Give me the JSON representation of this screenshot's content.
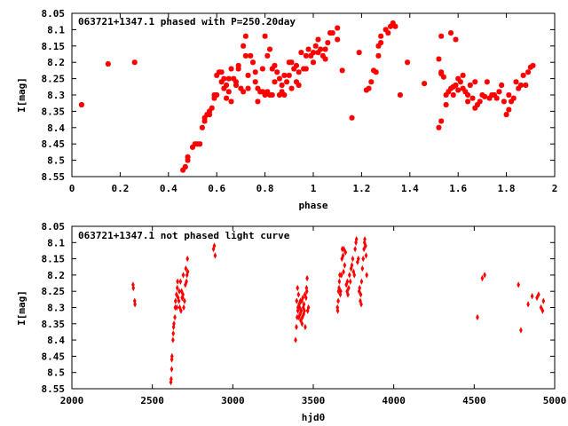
{
  "chart_data": [
    {
      "type": "scatter",
      "title": "063721+1347.1 phased with P=250.20day",
      "xlabel": "phase",
      "ylabel": "I[mag]",
      "xlim": [
        0,
        2
      ],
      "ylim": [
        8.55,
        8.05
      ],
      "y_inverted": true,
      "grid": false,
      "marker_color": "#ff0000",
      "x_ticks": [
        {
          "v": 0,
          "label": "0"
        },
        {
          "v": 0.2,
          "label": "0.2"
        },
        {
          "v": 0.4,
          "label": "0.4"
        },
        {
          "v": 0.6,
          "label": "0.6"
        },
        {
          "v": 0.8,
          "label": "0.8"
        },
        {
          "v": 1,
          "label": "1"
        },
        {
          "v": 1.2,
          "label": "1.2"
        },
        {
          "v": 1.4,
          "label": "1.4"
        },
        {
          "v": 1.6,
          "label": "1.6"
        },
        {
          "v": 1.8,
          "label": "1.8"
        },
        {
          "v": 2,
          "label": "2"
        }
      ],
      "y_ticks": [
        {
          "v": 8.05,
          "label": "8.05"
        },
        {
          "v": 8.1,
          "label": "8.1"
        },
        {
          "v": 8.15,
          "label": "8.15"
        },
        {
          "v": 8.2,
          "label": "8.2"
        },
        {
          "v": 8.25,
          "label": "8.25"
        },
        {
          "v": 8.3,
          "label": "8.3"
        },
        {
          "v": 8.35,
          "label": "8.35"
        },
        {
          "v": 8.4,
          "label": "8.4"
        },
        {
          "v": 8.45,
          "label": "8.45"
        },
        {
          "v": 8.5,
          "label": "8.5"
        },
        {
          "v": 8.55,
          "label": "8.55"
        }
      ],
      "points": [
        [
          0.04,
          8.33
        ],
        [
          0.15,
          8.205
        ],
        [
          0.26,
          8.2
        ],
        [
          0.46,
          8.53
        ],
        [
          0.47,
          8.52
        ],
        [
          0.48,
          8.5
        ],
        [
          0.48,
          8.49
        ],
        [
          0.5,
          8.46
        ],
        [
          0.51,
          8.45
        ],
        [
          0.52,
          8.45
        ],
        [
          0.53,
          8.45
        ],
        [
          0.54,
          8.4
        ],
        [
          0.55,
          8.38
        ],
        [
          0.55,
          8.37
        ],
        [
          0.56,
          8.36
        ],
        [
          0.57,
          8.35
        ],
        [
          0.57,
          8.36
        ],
        [
          0.58,
          8.34
        ],
        [
          0.59,
          8.31
        ],
        [
          0.59,
          8.3
        ],
        [
          0.6,
          8.3
        ],
        [
          0.6,
          8.24
        ],
        [
          0.61,
          8.23
        ],
        [
          0.62,
          8.23
        ],
        [
          0.62,
          8.26
        ],
        [
          0.63,
          8.28
        ],
        [
          0.63,
          8.25
        ],
        [
          0.64,
          8.27
        ],
        [
          0.64,
          8.31
        ],
        [
          0.65,
          8.25
        ],
        [
          0.65,
          8.29
        ],
        [
          0.66,
          8.22
        ],
        [
          0.66,
          8.32
        ],
        [
          0.67,
          8.25
        ],
        [
          0.68,
          8.27
        ],
        [
          0.68,
          8.26
        ],
        [
          0.69,
          8.22
        ],
        [
          0.69,
          8.21
        ],
        [
          0.7,
          8.28
        ],
        [
          0.71,
          8.29
        ],
        [
          0.71,
          8.15
        ],
        [
          0.72,
          8.18
        ],
        [
          0.72,
          8.12
        ],
        [
          0.73,
          8.24
        ],
        [
          0.73,
          8.28
        ],
        [
          0.74,
          8.18
        ],
        [
          0.75,
          8.2
        ],
        [
          0.76,
          8.23
        ],
        [
          0.76,
          8.26
        ],
        [
          0.77,
          8.28
        ],
        [
          0.77,
          8.32
        ],
        [
          0.78,
          8.29
        ],
        [
          0.79,
          8.29
        ],
        [
          0.79,
          8.22
        ],
        [
          0.8,
          8.12
        ],
        [
          0.8,
          8.3
        ],
        [
          0.81,
          8.18
        ],
        [
          0.81,
          8.29
        ],
        [
          0.82,
          8.16
        ],
        [
          0.82,
          8.3
        ],
        [
          0.83,
          8.22
        ],
        [
          0.83,
          8.3
        ],
        [
          0.84,
          8.21
        ],
        [
          0.84,
          8.26
        ],
        [
          0.85,
          8.23
        ],
        [
          0.86,
          8.25
        ],
        [
          0.86,
          8.3
        ],
        [
          0.87,
          8.27
        ],
        [
          0.87,
          8.29
        ],
        [
          0.88,
          8.24
        ],
        [
          0.88,
          8.3
        ],
        [
          0.89,
          8.26
        ],
        [
          0.9,
          8.24
        ],
        [
          0.9,
          8.2
        ],
        [
          0.91,
          8.2
        ],
        [
          0.91,
          8.28
        ],
        [
          0.92,
          8.22
        ],
        [
          0.93,
          8.26
        ],
        [
          0.93,
          8.21
        ],
        [
          0.94,
          8.27
        ],
        [
          0.94,
          8.23
        ],
        [
          0.95,
          8.17
        ],
        [
          0.96,
          8.22
        ],
        [
          0.97,
          8.18
        ],
        [
          0.97,
          8.22
        ],
        [
          0.98,
          8.16
        ],
        [
          0.99,
          8.18
        ],
        [
          1.0,
          8.17
        ],
        [
          1.0,
          8.2
        ],
        [
          1.01,
          8.15
        ],
        [
          1.02,
          8.17
        ],
        [
          1.02,
          8.13
        ],
        [
          1.03,
          8.16
        ],
        [
          1.04,
          8.18
        ],
        [
          1.05,
          8.19
        ],
        [
          1.05,
          8.16
        ],
        [
          1.06,
          8.14
        ],
        [
          1.07,
          8.11
        ],
        [
          1.08,
          8.11
        ],
        [
          1.1,
          8.095
        ],
        [
          1.1,
          8.13
        ],
        [
          1.12,
          8.225
        ],
        [
          1.16,
          8.37
        ],
        [
          1.19,
          8.17
        ],
        [
          1.22,
          8.285
        ],
        [
          1.23,
          8.28
        ],
        [
          1.24,
          8.26
        ],
        [
          1.25,
          8.225
        ],
        [
          1.26,
          8.23
        ],
        [
          1.27,
          8.18
        ],
        [
          1.27,
          8.15
        ],
        [
          1.28,
          8.14
        ],
        [
          1.28,
          8.12
        ],
        [
          1.3,
          8.1
        ],
        [
          1.31,
          8.11
        ],
        [
          1.32,
          8.09
        ],
        [
          1.33,
          8.08
        ],
        [
          1.34,
          8.09
        ],
        [
          1.36,
          8.3
        ],
        [
          1.39,
          8.2
        ],
        [
          1.46,
          8.265
        ],
        [
          1.52,
          8.19
        ],
        [
          1.52,
          8.4
        ],
        [
          1.53,
          8.23
        ],
        [
          1.53,
          8.235
        ],
        [
          1.53,
          8.38
        ],
        [
          1.53,
          8.12
        ],
        [
          1.54,
          8.245
        ],
        [
          1.55,
          8.3
        ],
        [
          1.55,
          8.33
        ],
        [
          1.56,
          8.29
        ],
        [
          1.57,
          8.11
        ],
        [
          1.57,
          8.28
        ],
        [
          1.58,
          8.275
        ],
        [
          1.58,
          8.3
        ],
        [
          1.59,
          8.13
        ],
        [
          1.59,
          8.27
        ],
        [
          1.6,
          8.285
        ],
        [
          1.6,
          8.25
        ],
        [
          1.61,
          8.26
        ],
        [
          1.62,
          8.24
        ],
        [
          1.62,
          8.28
        ],
        [
          1.63,
          8.29
        ],
        [
          1.64,
          8.3
        ],
        [
          1.64,
          8.32
        ],
        [
          1.65,
          8.27
        ],
        [
          1.66,
          8.31
        ],
        [
          1.67,
          8.34
        ],
        [
          1.67,
          8.26
        ],
        [
          1.68,
          8.33
        ],
        [
          1.69,
          8.32
        ],
        [
          1.7,
          8.3
        ],
        [
          1.71,
          8.305
        ],
        [
          1.72,
          8.26
        ],
        [
          1.73,
          8.31
        ],
        [
          1.74,
          8.3
        ],
        [
          1.75,
          8.3
        ],
        [
          1.76,
          8.31
        ],
        [
          1.77,
          8.29
        ],
        [
          1.78,
          8.27
        ],
        [
          1.79,
          8.32
        ],
        [
          1.8,
          8.36
        ],
        [
          1.81,
          8.3
        ],
        [
          1.81,
          8.345
        ],
        [
          1.82,
          8.32
        ],
        [
          1.83,
          8.31
        ],
        [
          1.84,
          8.26
        ],
        [
          1.85,
          8.28
        ],
        [
          1.86,
          8.27
        ],
        [
          1.87,
          8.24
        ],
        [
          1.88,
          8.27
        ],
        [
          1.89,
          8.23
        ],
        [
          1.9,
          8.215
        ],
        [
          1.91,
          8.21
        ]
      ]
    },
    {
      "type": "scatter",
      "title": "063721+1347.1 not phased light curve",
      "xlabel": "hjd0",
      "ylabel": "I[mag]",
      "xlim": [
        2000,
        5000
      ],
      "ylim": [
        8.55,
        8.05
      ],
      "y_inverted": true,
      "grid": false,
      "marker_color": "#ff0000",
      "x_ticks": [
        {
          "v": 2000,
          "label": "2000"
        },
        {
          "v": 2500,
          "label": "2500"
        },
        {
          "v": 3000,
          "label": "3000"
        },
        {
          "v": 3500,
          "label": "3500"
        },
        {
          "v": 4000,
          "label": "4000"
        },
        {
          "v": 4500,
          "label": "4500"
        },
        {
          "v": 5000,
          "label": "5000"
        }
      ],
      "y_ticks": [
        {
          "v": 8.05,
          "label": "8.05"
        },
        {
          "v": 8.1,
          "label": "8.1"
        },
        {
          "v": 8.15,
          "label": "8.15"
        },
        {
          "v": 8.2,
          "label": "8.2"
        },
        {
          "v": 8.25,
          "label": "8.25"
        },
        {
          "v": 8.3,
          "label": "8.3"
        },
        {
          "v": 8.35,
          "label": "8.35"
        },
        {
          "v": 8.4,
          "label": "8.4"
        },
        {
          "v": 8.45,
          "label": "8.45"
        },
        {
          "v": 8.5,
          "label": "8.5"
        },
        {
          "v": 8.55,
          "label": "8.55"
        }
      ],
      "points": [
        [
          2380,
          8.23
        ],
        [
          2382,
          8.24
        ],
        [
          2390,
          8.28
        ],
        [
          2392,
          8.29
        ],
        [
          2615,
          8.53
        ],
        [
          2617,
          8.52
        ],
        [
          2620,
          8.49
        ],
        [
          2621,
          8.46
        ],
        [
          2622,
          8.45
        ],
        [
          2628,
          8.4
        ],
        [
          2630,
          8.38
        ],
        [
          2632,
          8.36
        ],
        [
          2634,
          8.35
        ],
        [
          2640,
          8.33
        ],
        [
          2642,
          8.3
        ],
        [
          2644,
          8.28
        ],
        [
          2650,
          8.26
        ],
        [
          2652,
          8.3
        ],
        [
          2655,
          8.24
        ],
        [
          2657,
          8.22
        ],
        [
          2660,
          8.27
        ],
        [
          2665,
          8.28
        ],
        [
          2668,
          8.25
        ],
        [
          2670,
          8.3
        ],
        [
          2675,
          8.22
        ],
        [
          2678,
          8.31
        ],
        [
          2682,
          8.25
        ],
        [
          2685,
          8.27
        ],
        [
          2688,
          8.27
        ],
        [
          2690,
          8.26
        ],
        [
          2692,
          8.2
        ],
        [
          2695,
          8.3
        ],
        [
          2700,
          8.28
        ],
        [
          2705,
          8.23
        ],
        [
          2708,
          8.18
        ],
        [
          2712,
          8.22
        ],
        [
          2715,
          8.2
        ],
        [
          2718,
          8.15
        ],
        [
          2720,
          8.19
        ],
        [
          2880,
          8.12
        ],
        [
          2885,
          8.11
        ],
        [
          2890,
          8.14
        ],
        [
          3390,
          8.4
        ],
        [
          3395,
          8.36
        ],
        [
          3397,
          8.28
        ],
        [
          3400,
          8.33
        ],
        [
          3402,
          8.24
        ],
        [
          3404,
          8.31
        ],
        [
          3405,
          8.3
        ],
        [
          3408,
          8.26
        ],
        [
          3410,
          8.33
        ],
        [
          3412,
          8.29
        ],
        [
          3415,
          8.3
        ],
        [
          3418,
          8.32
        ],
        [
          3420,
          8.28
        ],
        [
          3422,
          8.34
        ],
        [
          3425,
          8.31
        ],
        [
          3428,
          8.28
        ],
        [
          3430,
          8.35
        ],
        [
          3432,
          8.33
        ],
        [
          3435,
          8.27
        ],
        [
          3438,
          8.3
        ],
        [
          3440,
          8.32
        ],
        [
          3442,
          8.29
        ],
        [
          3445,
          8.31
        ],
        [
          3448,
          8.26
        ],
        [
          3450,
          8.36
        ],
        [
          3455,
          8.27
        ],
        [
          3458,
          8.24
        ],
        [
          3460,
          8.25
        ],
        [
          3462,
          8.21
        ],
        [
          3465,
          8.31
        ],
        [
          3470,
          8.3
        ],
        [
          3650,
          8.3
        ],
        [
          3652,
          8.31
        ],
        [
          3655,
          8.28
        ],
        [
          3657,
          8.25
        ],
        [
          3660,
          8.24
        ],
        [
          3662,
          8.22
        ],
        [
          3665,
          8.2
        ],
        [
          3668,
          8.26
        ],
        [
          3670,
          8.25
        ],
        [
          3675,
          8.2
        ],
        [
          3678,
          8.15
        ],
        [
          3680,
          8.12
        ],
        [
          3685,
          8.14
        ],
        [
          3688,
          8.19
        ],
        [
          3690,
          8.12
        ],
        [
          3695,
          8.17
        ],
        [
          3700,
          8.13
        ],
        [
          3705,
          8.23
        ],
        [
          3710,
          8.25
        ],
        [
          3712,
          8.22
        ],
        [
          3715,
          8.26
        ],
        [
          3720,
          8.24
        ],
        [
          3725,
          8.2
        ],
        [
          3730,
          8.22
        ],
        [
          3735,
          8.18
        ],
        [
          3740,
          8.17
        ],
        [
          3745,
          8.15
        ],
        [
          3750,
          8.19
        ],
        [
          3755,
          8.2
        ],
        [
          3760,
          8.12
        ],
        [
          3765,
          8.1
        ],
        [
          3768,
          8.09
        ],
        [
          3775,
          8.16
        ],
        [
          3780,
          8.15
        ],
        [
          3785,
          8.25
        ],
        [
          3788,
          8.24
        ],
        [
          3792,
          8.28
        ],
        [
          3795,
          8.26
        ],
        [
          3798,
          8.29
        ],
        [
          3800,
          8.22
        ],
        [
          3805,
          8.18
        ],
        [
          3810,
          8.15
        ],
        [
          3815,
          8.12
        ],
        [
          3818,
          8.1
        ],
        [
          3820,
          8.09
        ],
        [
          3825,
          8.11
        ],
        [
          3828,
          8.14
        ],
        [
          3832,
          8.2
        ],
        [
          4520,
          8.33
        ],
        [
          4550,
          8.21
        ],
        [
          4565,
          8.2
        ],
        [
          4775,
          8.23
        ],
        [
          4790,
          8.37
        ],
        [
          4835,
          8.29
        ],
        [
          4860,
          8.265
        ],
        [
          4890,
          8.27
        ],
        [
          4900,
          8.26
        ],
        [
          4915,
          8.3
        ],
        [
          4925,
          8.31
        ],
        [
          4930,
          8.28
        ]
      ]
    }
  ]
}
